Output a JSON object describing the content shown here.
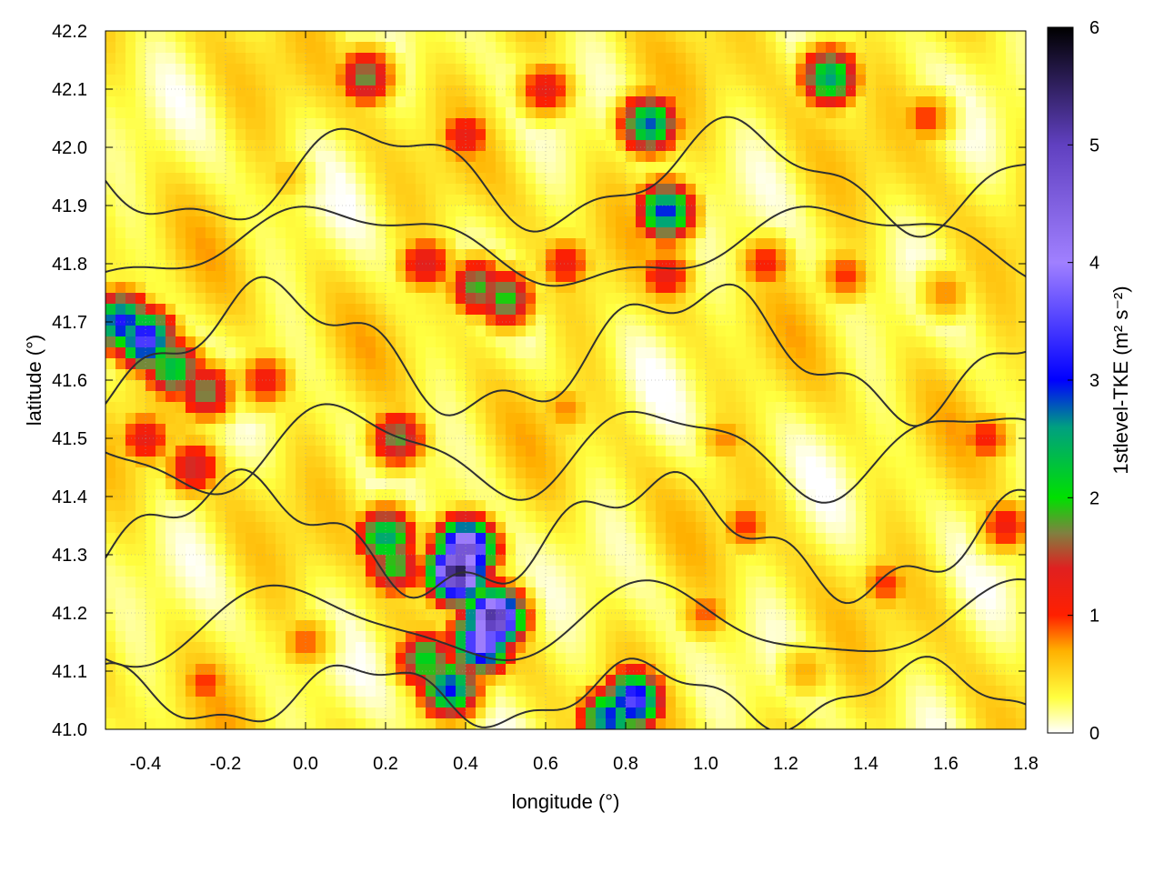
{
  "chart_data": {
    "type": "heatmap",
    "xlabel": "longitude (°)",
    "ylabel": "latitude (°)",
    "xlim": [
      -0.5,
      1.8
    ],
    "ylim": [
      41.0,
      42.2
    ],
    "xticks": [
      -0.4,
      -0.2,
      0.0,
      0.2,
      0.4,
      0.6,
      0.8,
      1.0,
      1.2,
      1.4,
      1.6,
      1.8
    ],
    "yticks": [
      41.0,
      41.1,
      41.2,
      41.3,
      41.4,
      41.5,
      41.6,
      41.7,
      41.8,
      41.9,
      42.0,
      42.1,
      42.2
    ],
    "xtick_labels": [
      "-0.4",
      "-0.2",
      "0.0",
      "0.2",
      "0.4",
      "0.6",
      "0.8",
      "1.0",
      "1.2",
      "1.4",
      "1.6",
      "1.8"
    ],
    "ytick_labels": [
      "41.0",
      "41.1",
      "41.2",
      "41.3",
      "41.4",
      "41.5",
      "41.6",
      "41.7",
      "41.8",
      "41.9",
      "42.0",
      "42.1",
      "42.2"
    ],
    "grid": true,
    "colorbar": {
      "label": "1stlevel-TKE (m² s⁻²)",
      "range": [
        0,
        6
      ],
      "ticks": [
        0,
        1,
        2,
        3,
        4,
        5,
        6
      ],
      "tick_labels": [
        "0",
        "1",
        "2",
        "3",
        "4",
        "5",
        "6"
      ],
      "stops": [
        {
          "value": 0.0,
          "color": "#ffffff"
        },
        {
          "value": 0.3,
          "color": "#ffff40"
        },
        {
          "value": 0.7,
          "color": "#ffb000"
        },
        {
          "value": 1.0,
          "color": "#ff2000"
        },
        {
          "value": 1.4,
          "color": "#e02020"
        },
        {
          "value": 1.7,
          "color": "#808040"
        },
        {
          "value": 2.0,
          "color": "#00e000"
        },
        {
          "value": 2.6,
          "color": "#00a080"
        },
        {
          "value": 3.0,
          "color": "#0000ff"
        },
        {
          "value": 4.0,
          "color": "#a080ff"
        },
        {
          "value": 5.0,
          "color": "#6040c0"
        },
        {
          "value": 6.0,
          "color": "#000000"
        }
      ]
    },
    "features": [
      {
        "lon": 0.43,
        "lat": 41.76,
        "tke": 1.9
      },
      {
        "lon": 0.5,
        "lat": 41.74,
        "tke": 2.0
      },
      {
        "lon": 0.3,
        "lat": 41.8,
        "tke": 1.4
      },
      {
        "lon": 0.65,
        "lat": 41.8,
        "tke": 1.2
      },
      {
        "lon": 0.9,
        "lat": 41.78,
        "tke": 1.3
      },
      {
        "lon": 1.15,
        "lat": 41.8,
        "tke": 1.1
      },
      {
        "lon": 1.35,
        "lat": 41.78,
        "tke": 1.0
      },
      {
        "lon": -0.46,
        "lat": 41.7,
        "tke": 3.2
      },
      {
        "lon": -0.4,
        "lat": 41.67,
        "tke": 3.6
      },
      {
        "lon": -0.33,
        "lat": 41.62,
        "tke": 2.4
      },
      {
        "lon": -0.25,
        "lat": 41.58,
        "tke": 1.8
      },
      {
        "lon": -0.4,
        "lat": 41.5,
        "tke": 1.3
      },
      {
        "lon": -0.28,
        "lat": 41.45,
        "tke": 1.5
      },
      {
        "lon": -0.1,
        "lat": 41.6,
        "tke": 1.2
      },
      {
        "lon": 0.23,
        "lat": 41.5,
        "tke": 1.8
      },
      {
        "lon": 0.2,
        "lat": 41.33,
        "tke": 2.6
      },
      {
        "lon": 0.22,
        "lat": 41.28,
        "tke": 2.0
      },
      {
        "lon": 0.4,
        "lat": 41.31,
        "tke": 4.8
      },
      {
        "lon": 0.38,
        "lat": 41.27,
        "tke": 5.6
      },
      {
        "lon": 0.47,
        "lat": 41.19,
        "tke": 5.3
      },
      {
        "lon": 0.44,
        "lat": 41.15,
        "tke": 4.2
      },
      {
        "lon": 0.36,
        "lat": 41.07,
        "tke": 3.0
      },
      {
        "lon": 0.3,
        "lat": 41.12,
        "tke": 2.2
      },
      {
        "lon": 0.82,
        "lat": 41.05,
        "tke": 3.6
      },
      {
        "lon": 0.76,
        "lat": 41.02,
        "tke": 3.0
      },
      {
        "lon": 0.9,
        "lat": 41.89,
        "tke": 3.0
      },
      {
        "lon": 0.86,
        "lat": 42.04,
        "tke": 2.8
      },
      {
        "lon": 1.31,
        "lat": 42.12,
        "tke": 2.6
      },
      {
        "lon": 0.15,
        "lat": 42.12,
        "tke": 1.8
      },
      {
        "lon": 0.4,
        "lat": 42.02,
        "tke": 1.3
      },
      {
        "lon": 0.6,
        "lat": 42.1,
        "tke": 1.3
      },
      {
        "lon": 1.55,
        "lat": 42.05,
        "tke": 1.0
      },
      {
        "lon": 1.1,
        "lat": 41.35,
        "tke": 1.0
      },
      {
        "lon": 1.45,
        "lat": 41.25,
        "tke": 1.0
      },
      {
        "lon": 1.7,
        "lat": 41.5,
        "tke": 1.1
      },
      {
        "lon": 1.75,
        "lat": 41.35,
        "tke": 1.2
      },
      {
        "lon": 1.05,
        "lat": 41.5,
        "tke": 0.8
      },
      {
        "lon": 0.0,
        "lat": 41.15,
        "tke": 0.9
      },
      {
        "lon": -0.25,
        "lat": 41.08,
        "tke": 1.0
      },
      {
        "lon": 1.0,
        "lat": 41.2,
        "tke": 0.9
      },
      {
        "lon": 1.25,
        "lat": 41.1,
        "tke": 0.7
      },
      {
        "lon": 0.65,
        "lat": 41.55,
        "tke": 0.8
      },
      {
        "lon": -0.05,
        "lat": 41.95,
        "tke": 0.6
      },
      {
        "lon": 1.6,
        "lat": 41.75,
        "tke": 0.8
      }
    ]
  }
}
